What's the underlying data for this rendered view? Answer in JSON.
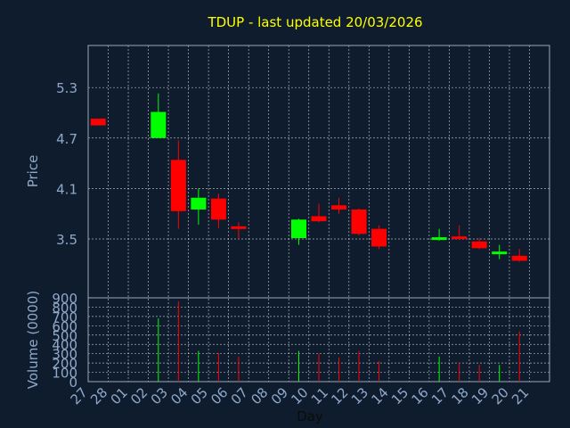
{
  "chart_data": [
    {
      "type": "candlestick",
      "title": "TDUP - last updated 20/03/2026",
      "ylabel": "Price",
      "xlabel": "",
      "ylim": [
        2.8,
        5.8
      ],
      "yticks": [
        3.5,
        4.1,
        4.7,
        5.3
      ],
      "ytick_labels": [
        "3.5",
        "4.1",
        "4.7",
        "5.3"
      ],
      "categories": [
        "27",
        "28",
        "01",
        "02",
        "03",
        "04",
        "05",
        "06",
        "07",
        "08",
        "09",
        "10",
        "11",
        "12",
        "13",
        "14",
        "15",
        "16",
        "17",
        "18",
        "19",
        "20",
        "21"
      ],
      "grid": true,
      "colors": {
        "up": "#00ff00",
        "down": "#ff0000",
        "grid": "#ffffff",
        "axis_text": "#8fa8c8",
        "title": "#ffff00",
        "background": "#0f1c2e"
      },
      "candles": [
        {
          "x": "27",
          "open": 4.93,
          "close": 4.85,
          "high": 4.93,
          "low": 4.85
        },
        {
          "x": "02",
          "open": 4.7,
          "close": 5.01,
          "high": 5.23,
          "low": 4.7
        },
        {
          "x": "03",
          "open": 4.44,
          "close": 3.83,
          "high": 4.67,
          "low": 3.62
        },
        {
          "x": "04",
          "open": 3.85,
          "close": 3.99,
          "high": 4.1,
          "low": 3.67
        },
        {
          "x": "05",
          "open": 3.98,
          "close": 3.73,
          "high": 4.04,
          "low": 3.63
        },
        {
          "x": "06",
          "open": 3.65,
          "close": 3.63,
          "high": 3.7,
          "low": 3.5
        },
        {
          "x": "09",
          "open": 3.51,
          "close": 3.73,
          "high": 3.74,
          "low": 3.43
        },
        {
          "x": "10",
          "open": 3.77,
          "close": 3.71,
          "high": 3.92,
          "low": 3.7
        },
        {
          "x": "11",
          "open": 3.9,
          "close": 3.85,
          "high": 3.99,
          "low": 3.8
        },
        {
          "x": "12",
          "open": 3.85,
          "close": 3.56,
          "high": 3.86,
          "low": 3.54
        },
        {
          "x": "13",
          "open": 3.62,
          "close": 3.41,
          "high": 3.66,
          "low": 3.38
        },
        {
          "x": "16",
          "open": 3.5,
          "close": 3.52,
          "high": 3.62,
          "low": 3.48
        },
        {
          "x": "17",
          "open": 3.53,
          "close": 3.52,
          "high": 3.66,
          "low": 3.49
        },
        {
          "x": "18",
          "open": 3.47,
          "close": 3.39,
          "high": 3.51,
          "low": 3.38
        },
        {
          "x": "19",
          "open": 3.33,
          "close": 3.35,
          "high": 3.43,
          "low": 3.26
        },
        {
          "x": "20",
          "open": 3.3,
          "close": 3.24,
          "high": 3.38,
          "low": 3.23
        }
      ]
    },
    {
      "type": "bar",
      "title": "",
      "ylabel": "Volume (0000)",
      "xlabel": "Day",
      "ylim": [
        0,
        900
      ],
      "yticks": [
        0,
        100,
        200,
        300,
        400,
        500,
        600,
        700,
        800,
        900
      ],
      "ytick_labels": [
        "0",
        "100",
        "200",
        "300",
        "400",
        "500",
        "600",
        "700",
        "800",
        "900"
      ],
      "categories": [
        "27",
        "28",
        "01",
        "02",
        "03",
        "04",
        "05",
        "06",
        "07",
        "08",
        "09",
        "10",
        "11",
        "12",
        "13",
        "14",
        "15",
        "16",
        "17",
        "18",
        "19",
        "20",
        "21"
      ],
      "grid": true,
      "bars": [
        {
          "x": "02",
          "value": 680,
          "direction": "up"
        },
        {
          "x": "03",
          "value": 860,
          "direction": "down"
        },
        {
          "x": "04",
          "value": 330,
          "direction": "up"
        },
        {
          "x": "05",
          "value": 310,
          "direction": "down"
        },
        {
          "x": "06",
          "value": 270,
          "direction": "down"
        },
        {
          "x": "09",
          "value": 330,
          "direction": "up"
        },
        {
          "x": "10",
          "value": 300,
          "direction": "down"
        },
        {
          "x": "11",
          "value": 260,
          "direction": "down"
        },
        {
          "x": "12",
          "value": 330,
          "direction": "down"
        },
        {
          "x": "13",
          "value": 220,
          "direction": "down"
        },
        {
          "x": "16",
          "value": 270,
          "direction": "up"
        },
        {
          "x": "17",
          "value": 200,
          "direction": "down"
        },
        {
          "x": "18",
          "value": 180,
          "direction": "down"
        },
        {
          "x": "19",
          "value": 180,
          "direction": "up"
        },
        {
          "x": "20",
          "value": 540,
          "direction": "down"
        }
      ]
    }
  ]
}
